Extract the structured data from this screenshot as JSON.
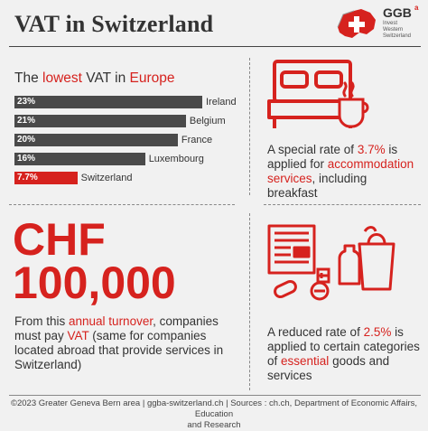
{
  "header": {
    "title": "VAT in Switzerland",
    "logo_name": "GGB",
    "logo_sup": "a",
    "logo_lines": [
      "Invest",
      "Western",
      "Switzerland"
    ]
  },
  "subtitle": {
    "pre": "The ",
    "highlight1": "lowest",
    "mid": " VAT in ",
    "highlight2": "Europe"
  },
  "chart_data": {
    "type": "bar",
    "orientation": "horizontal",
    "categories": [
      "Ireland",
      "Belgium",
      "France",
      "Luxembourg",
      "Switzerland"
    ],
    "values": [
      23,
      21,
      20,
      16,
      7.7
    ],
    "data_labels": [
      "23%",
      "21%",
      "20%",
      "16%",
      "7.7%"
    ],
    "highlight": "Switzerland",
    "colors": {
      "default": "#4a4a4a",
      "highlight": "#d6221e"
    }
  },
  "accommodation": {
    "icon": "bed-and-coffee-icon",
    "pre": "A special rate of ",
    "rate": "3.7%",
    "mid": " is applied for ",
    "highlight": "accommodation services",
    "post": ", including breakfast"
  },
  "turnover": {
    "amount_line1": "CHF",
    "amount_line2": "100,000",
    "pre": "From this ",
    "highlight1": "annual turnover",
    "mid": ", companies must pay ",
    "highlight2": "VAT",
    "post": " (same for companies located abroad that provide services in Switzerland)"
  },
  "reduced": {
    "icon": "newspaper-grocery-medicine-icon",
    "pre": "A reduced rate of ",
    "rate": "2.5%",
    "mid": " is applied to certain categories of ",
    "highlight": "essential",
    "post": " goods and services"
  },
  "footer": {
    "line1": "©2023 Greater Geneva Bern area | ggba-switzerland.ch | Sources : ch.ch,  Department of Economic Affairs, Education",
    "line2": "and Research"
  },
  "colors": {
    "accent": "#d6221e",
    "dark": "#4a4a4a",
    "background": "#f1f1f1"
  }
}
